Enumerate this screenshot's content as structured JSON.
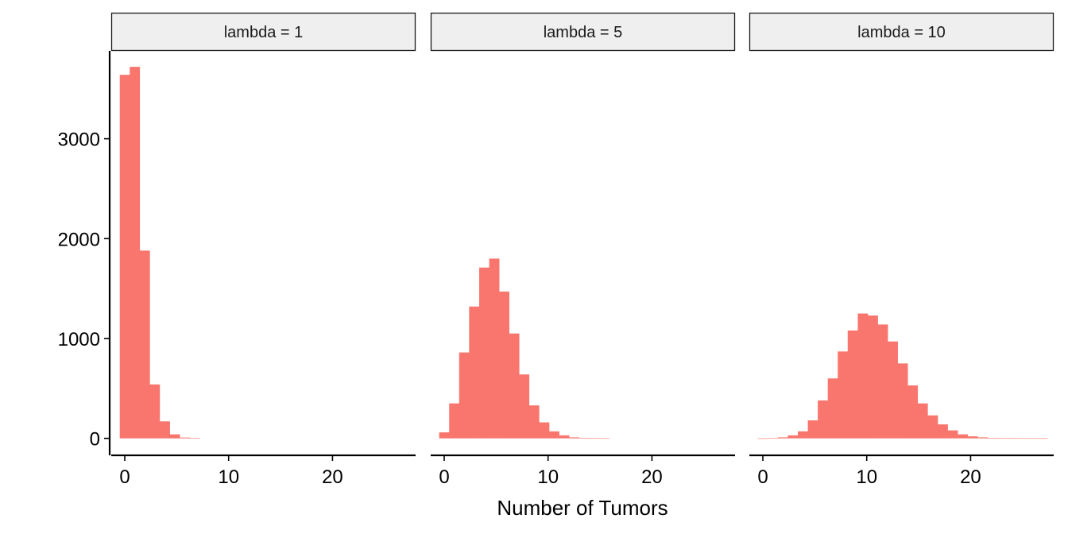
{
  "chart_data": {
    "type": "bar",
    "subtype": "faceted-histogram",
    "xlabel": "Number of Tumors",
    "ylabel": "",
    "ylim": [
      -170,
      3880
    ],
    "xlim": [
      -1.3,
      28.0
    ],
    "y_ticks": [
      0,
      1000,
      2000,
      3000
    ],
    "x_ticks": [
      0,
      10,
      20
    ],
    "bin_width": 0.9615,
    "grid": false,
    "legend": "none",
    "colors": {
      "bar": "#F8766D",
      "strip_fill": "#EFEFEF",
      "strip_border": "#1a1a1a"
    },
    "facets": [
      {
        "label": "lambda = 1",
        "bin_centers": [
          0,
          0.96,
          1.92,
          2.88,
          3.85,
          4.81,
          5.77,
          6.73
        ],
        "counts": [
          3640,
          3720,
          1880,
          540,
          170,
          40,
          8,
          2
        ]
      },
      {
        "label": "lambda = 5",
        "bin_centers": [
          0,
          0.96,
          1.92,
          2.88,
          3.85,
          4.81,
          5.77,
          6.73,
          7.69,
          8.65,
          9.62,
          10.58,
          11.54,
          12.5,
          13.46,
          14.42,
          15.38
        ],
        "counts": [
          60,
          350,
          860,
          1320,
          1710,
          1800,
          1470,
          1050,
          640,
          330,
          160,
          70,
          30,
          10,
          5,
          3,
          1
        ]
      },
      {
        "label": "lambda = 10",
        "bin_centers": [
          0,
          0.96,
          1.92,
          2.88,
          3.85,
          4.81,
          5.77,
          6.73,
          7.69,
          8.65,
          9.62,
          10.58,
          11.54,
          12.5,
          13.46,
          14.42,
          15.38,
          16.35,
          17.31,
          18.27,
          19.23,
          20.19,
          21.15,
          22.12,
          23.08,
          24.04,
          25.0,
          25.96,
          26.92
        ],
        "counts": [
          0,
          3,
          10,
          30,
          70,
          180,
          380,
          600,
          870,
          1080,
          1250,
          1230,
          1140,
          970,
          750,
          530,
          350,
          230,
          140,
          80,
          40,
          20,
          10,
          5,
          3,
          2,
          1,
          1,
          1
        ]
      }
    ]
  }
}
